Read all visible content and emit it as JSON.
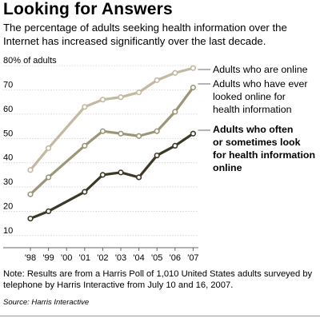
{
  "title": "Looking for Answers",
  "subtitle": "The percentage of adults seeking health information over the Internet has increased significantly over the last decade.",
  "note": "Note: Results are from a Harris Poll of 1,010 United States adults surveyed by telephone by Harris Interactive from July 10 and 16, 2007.",
  "source": "Source: Harris Interactive",
  "chart_data": {
    "type": "line",
    "title": "",
    "xlabel": "",
    "ylabel": "% of adults",
    "x": [
      "'98",
      "'99",
      "'00",
      "'01",
      "'02",
      "'03",
      "'04",
      "'05",
      "'06",
      "'07"
    ],
    "x_values": [
      1998,
      1999,
      2000,
      2001,
      2002,
      2003,
      2004,
      2005,
      2006,
      2007
    ],
    "y_ticks": [
      "10",
      "20",
      "30",
      "40",
      "50",
      "60",
      "70",
      "80% of adults"
    ],
    "ylim": [
      5,
      84
    ],
    "grid": true,
    "legend": "direct labels at right end of lines",
    "series": [
      {
        "name": "Adults who are online",
        "label_lines": [
          "Adults who are online"
        ],
        "label_bold": false,
        "color": "#c2b9a0",
        "x": [
          1998,
          1999,
          2001,
          2002,
          2003,
          2004,
          2005,
          2006,
          2007
        ],
        "values": [
          37,
          46,
          63,
          66,
          67,
          69,
          74,
          77,
          79
        ]
      },
      {
        "name": "Adults who have ever looked online for health information",
        "label_lines": [
          "Adults who have ever",
          "looked online for",
          "health information"
        ],
        "label_bold": false,
        "color": "#9c9578",
        "x": [
          1998,
          1999,
          2001,
          2002,
          2003,
          2004,
          2005,
          2006,
          2007
        ],
        "values": [
          27,
          34,
          47,
          53,
          52,
          51,
          53,
          61,
          71
        ]
      },
      {
        "name": "Adults who often or sometimes look for health information online",
        "label_lines": [
          "Adults who often",
          "or sometimes look",
          "for health information",
          "online"
        ],
        "label_bold": true,
        "color": "#3d3826",
        "x": [
          1998,
          1999,
          2001,
          2002,
          2003,
          2004,
          2005,
          2006,
          2007
        ],
        "values": [
          17,
          20,
          28,
          35,
          36,
          34,
          43,
          47,
          52
        ]
      }
    ]
  }
}
